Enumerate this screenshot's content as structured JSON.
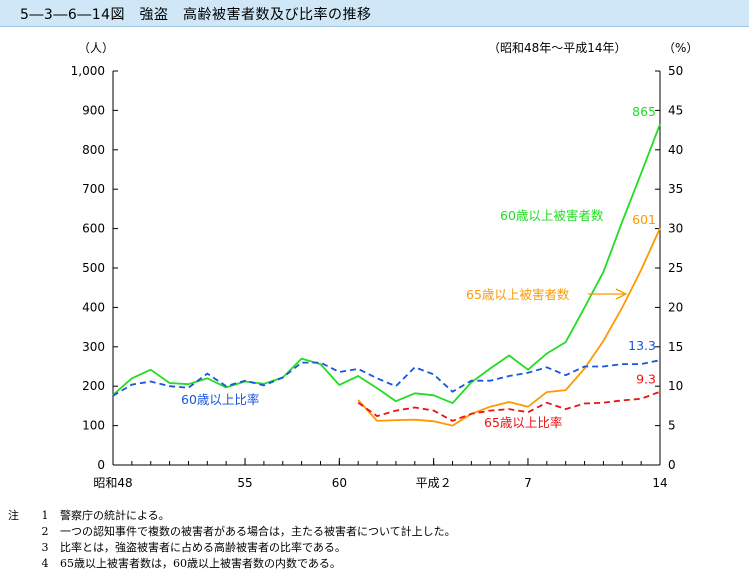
{
  "figure_title": "5―3―6―14図　強盗　高齢被害者数及び比率の推移",
  "chart_data": {
    "type": "line",
    "period_note": "（昭和48年～平成14年）",
    "left_unit": "（人）",
    "right_unit": "（%）",
    "x_tick_labels": [
      "昭和48",
      "55",
      "60",
      "平成２",
      "7",
      "14"
    ],
    "x": [
      1973,
      1974,
      1975,
      1976,
      1977,
      1978,
      1979,
      1980,
      1981,
      1982,
      1983,
      1984,
      1985,
      1986,
      1987,
      1988,
      1989,
      1990,
      1991,
      1992,
      1993,
      1994,
      1995,
      1996,
      1997,
      1998,
      1999,
      2000,
      2001,
      2002
    ],
    "x_tick_years": [
      1973,
      1980,
      1985,
      1990,
      1995,
      2002
    ],
    "ylim_left": [
      0,
      1000
    ],
    "yticks_left_labels": [
      "0",
      "100",
      "200",
      "300",
      "400",
      "500",
      "600",
      "700",
      "800",
      "900",
      "1,000"
    ],
    "ylim_right": [
      0,
      50
    ],
    "yticks_right_labels": [
      "0",
      "5",
      "10",
      "15",
      "20",
      "25",
      "30",
      "35",
      "40",
      "45",
      "50"
    ],
    "series": [
      {
        "name": "60歳以上被害者数",
        "axis": "left",
        "color": "#22dd22",
        "dashed": false,
        "end_label": "865",
        "values": [
          178,
          220,
          242,
          208,
          205,
          220,
          197,
          212,
          206,
          222,
          270,
          256,
          203,
          226,
          195,
          162,
          182,
          177,
          157,
          210,
          245,
          278,
          242,
          283,
          312,
          400,
          490,
          618,
          740,
          865
        ]
      },
      {
        "name": "65歳以上被害者数",
        "axis": "left",
        "color": "#ff9900",
        "dashed": false,
        "end_label": "601",
        "values": [
          null,
          null,
          null,
          null,
          null,
          null,
          null,
          null,
          null,
          null,
          null,
          null,
          null,
          165,
          112,
          114,
          115,
          111,
          100,
          130,
          148,
          160,
          148,
          185,
          190,
          245,
          315,
          400,
          495,
          601
        ]
      },
      {
        "name": "60歳以上比率",
        "axis": "right",
        "color": "#1a55dd",
        "dashed": true,
        "end_label": "13.3",
        "values": [
          8.8,
          10.2,
          10.6,
          10.0,
          9.8,
          11.6,
          10.0,
          10.7,
          10.1,
          11.1,
          13.0,
          13.0,
          11.8,
          12.2,
          11.0,
          10.0,
          12.4,
          11.5,
          9.3,
          10.7,
          10.7,
          11.3,
          11.7,
          12.4,
          11.4,
          12.5,
          12.5,
          12.8,
          12.8,
          13.3
        ]
      },
      {
        "name": "65歳以上比率",
        "axis": "right",
        "color": "#ee1111",
        "dashed": true,
        "end_label": "9.3",
        "values": [
          null,
          null,
          null,
          null,
          null,
          null,
          null,
          null,
          null,
          null,
          null,
          null,
          null,
          7.9,
          6.2,
          6.9,
          7.3,
          6.9,
          5.6,
          6.5,
          6.9,
          7.1,
          6.7,
          7.9,
          7.1,
          7.8,
          7.9,
          8.2,
          8.4,
          9.3
        ]
      }
    ]
  },
  "notes": {
    "head": "注",
    "items": [
      {
        "num": "1",
        "text": "警察庁の統計による。"
      },
      {
        "num": "2",
        "text": "一つの認知事件で複数の被害者がある場合は，主たる被害者について計上した。"
      },
      {
        "num": "3",
        "text": "比率とは，強盗被害者に占める高齢被害者の比率である。"
      },
      {
        "num": "4",
        "text": "65歳以上被害者数は，60歳以上被害者数の内数である。"
      }
    ]
  }
}
